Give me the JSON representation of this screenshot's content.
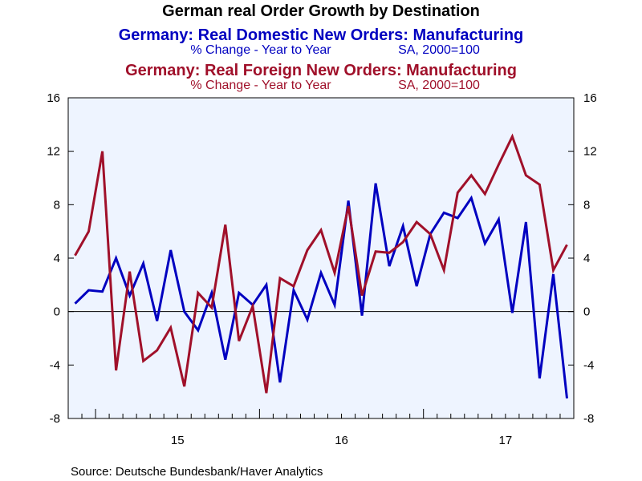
{
  "chart_data": {
    "type": "line",
    "title": "German real Order Growth by Destination",
    "series_titles": [
      {
        "name": "Germany: Real Domestic New Orders: Manufacturing",
        "subtitle_left": "% Change - Year to Year",
        "subtitle_right": "SA, 2000=100",
        "color": "#0000C0"
      },
      {
        "name": "Germany: Real Foreign New Orders: Manufacturing",
        "subtitle_left": "% Change - Year to Year",
        "subtitle_right": "SA, 2000=100",
        "color": "#A0102A"
      }
    ],
    "x_start": "2014-11",
    "x_end": "2017-10",
    "x_tick_labels": [
      "15",
      "16",
      "17"
    ],
    "ylim": [
      -8,
      16
    ],
    "y_ticks": [
      16,
      12,
      8,
      4,
      0,
      -4,
      -8
    ],
    "zero_line": true,
    "background": "#EEF4FF",
    "series": [
      {
        "name": "Germany: Real Domestic New Orders: Manufacturing",
        "color": "#0000C0",
        "values": [
          0.6,
          1.6,
          1.5,
          4.0,
          1.2,
          3.6,
          -0.7,
          4.6,
          0.0,
          -1.4,
          1.4,
          -3.6,
          1.4,
          0.5,
          2.0,
          -5.3,
          1.6,
          -0.6,
          2.9,
          0.5,
          8.3,
          -0.3,
          9.6,
          3.4,
          6.4,
          1.9,
          5.8,
          7.4,
          7.0,
          8.5,
          5.1,
          6.9,
          -0.1,
          6.7,
          -5.0,
          2.8,
          -6.5
        ]
      },
      {
        "name": "Germany: Real Foreign New Orders: Manufacturing",
        "color": "#A0102A",
        "values": [
          4.2,
          6.0,
          12.0,
          -4.4,
          3.0,
          -3.7,
          -2.9,
          -1.2,
          -5.6,
          1.4,
          0.3,
          6.5,
          -2.2,
          0.4,
          -6.1,
          2.5,
          1.9,
          4.6,
          6.1,
          2.9,
          7.9,
          1.2,
          4.5,
          4.4,
          5.2,
          6.7,
          5.8,
          3.1,
          8.9,
          10.2,
          8.8,
          11.0,
          13.1,
          10.2,
          9.5,
          3.1,
          5.0
        ]
      }
    ]
  },
  "source": "Source:  Deutsche Bundesbank/Haver Analytics"
}
